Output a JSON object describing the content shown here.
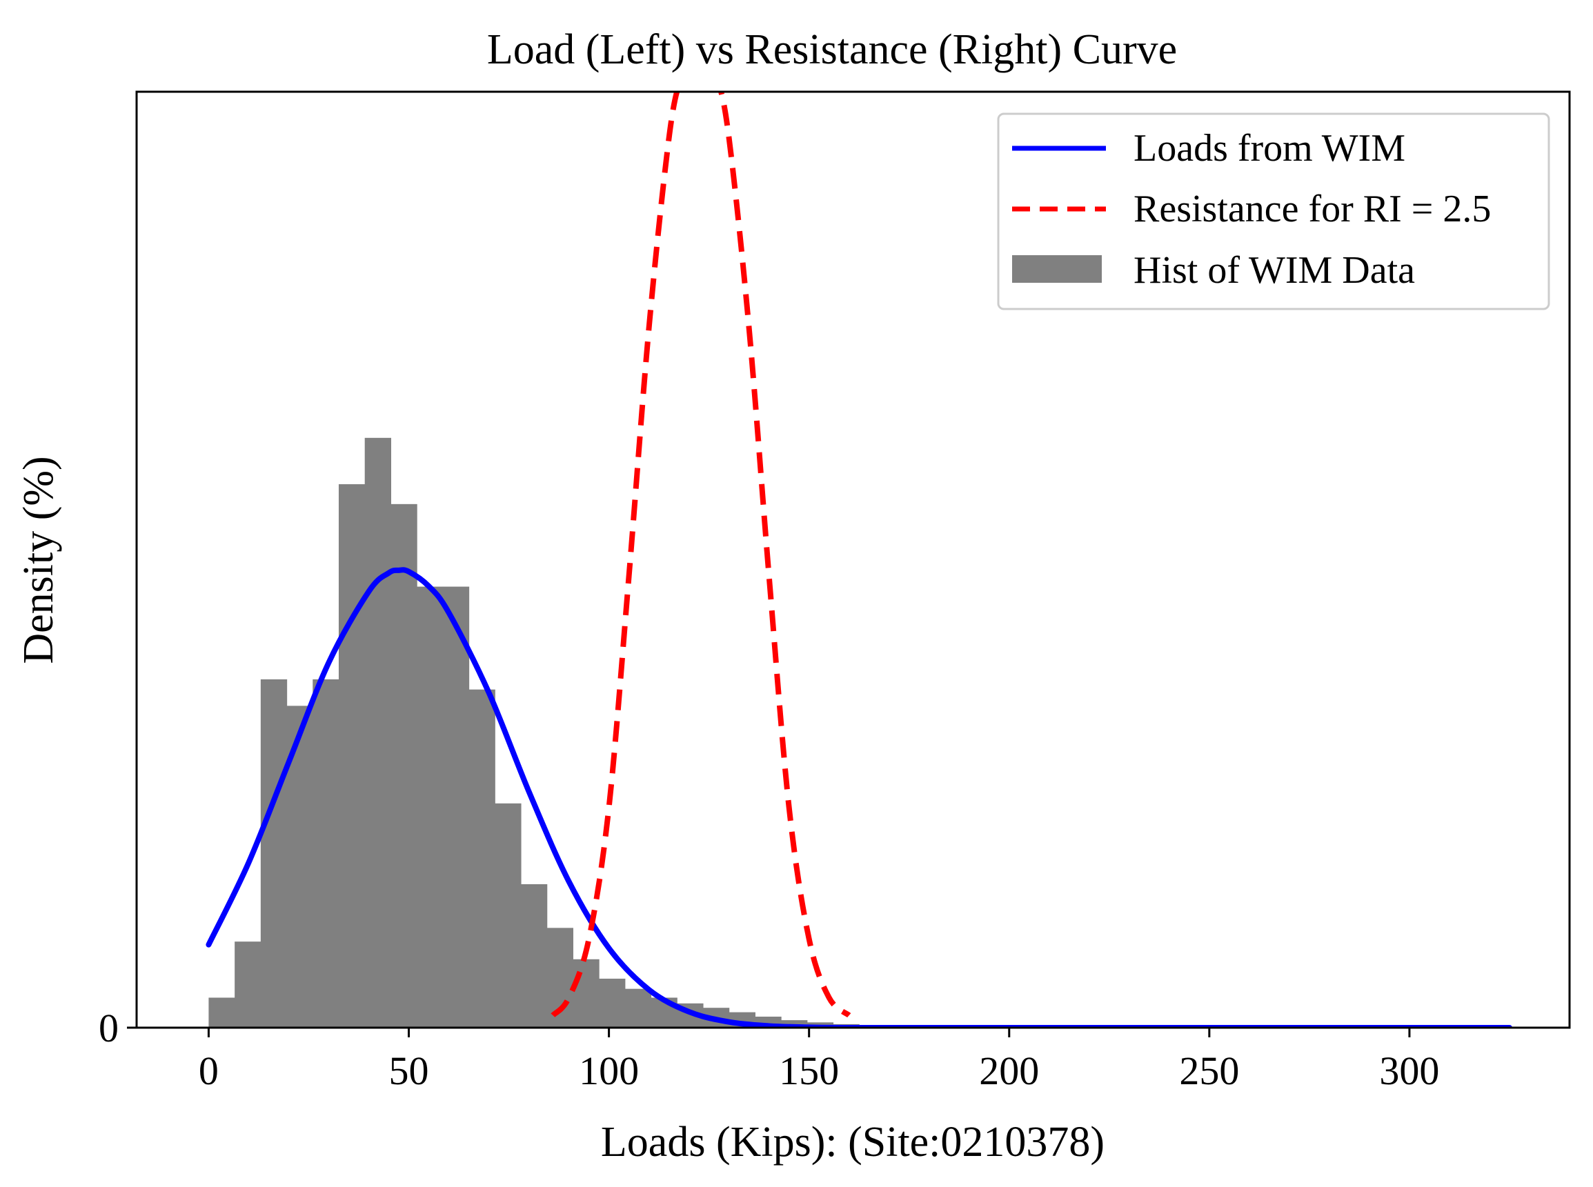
{
  "chart_data": {
    "type": "histogram+line",
    "title": "Load (Left) vs Resistance (Right) Curve",
    "xlabel": "Loads (Kips): (Site:0210378)",
    "ylabel": "Density (%)",
    "xlim": [
      -18,
      340
    ],
    "ylim": [
      0,
      0.0212
    ],
    "x_ticks": [
      0,
      50,
      100,
      150,
      200,
      250,
      300
    ],
    "x_tick_labels": [
      "0",
      "50",
      "100",
      "150",
      "200",
      "250",
      "300"
    ],
    "y_ticks": [
      0
    ],
    "y_tick_labels": [
      "0"
    ],
    "grid": false,
    "legend": {
      "position": "top-right",
      "entries": [
        {
          "label": "Loads from WIM",
          "style": "solid-line",
          "color": "#0000FF"
        },
        {
          "label": "Resistance for RI = 2.5",
          "style": "dashed-line",
          "color": "#FF0000"
        },
        {
          "label": "Hist of WIM Data",
          "style": "patch",
          "color": "#808080"
        }
      ]
    },
    "histogram": {
      "name": "Hist of WIM Data",
      "color": "#808080",
      "bin_width": 6.5,
      "bins": [
        {
          "x0": 0.0,
          "x1": 6.5,
          "density": 0.00068
        },
        {
          "x0": 6.5,
          "x1": 13.0,
          "density": 0.00195
        },
        {
          "x0": 13.0,
          "x1": 19.5,
          "density": 0.00789
        },
        {
          "x0": 19.5,
          "x1": 26.0,
          "density": 0.00729
        },
        {
          "x0": 26.0,
          "x1": 32.5,
          "density": 0.00789
        },
        {
          "x0": 32.5,
          "x1": 39.0,
          "density": 0.01231
        },
        {
          "x0": 39.0,
          "x1": 45.5,
          "density": 0.01336
        },
        {
          "x0": 45.5,
          "x1": 52.0,
          "density": 0.01186
        },
        {
          "x0": 52.0,
          "x1": 58.5,
          "density": 0.00999
        },
        {
          "x0": 58.5,
          "x1": 65.0,
          "density": 0.00999
        },
        {
          "x0": 65.0,
          "x1": 71.5,
          "density": 0.00766
        },
        {
          "x0": 71.5,
          "x1": 78.0,
          "density": 0.00508
        },
        {
          "x0": 78.0,
          "x1": 84.5,
          "density": 0.00325
        },
        {
          "x0": 84.5,
          "x1": 91.0,
          "density": 0.00226
        },
        {
          "x0": 91.0,
          "x1": 97.5,
          "density": 0.00155
        },
        {
          "x0": 97.5,
          "x1": 104.0,
          "density": 0.00111
        },
        {
          "x0": 104.0,
          "x1": 110.5,
          "density": 0.00088
        },
        {
          "x0": 110.5,
          "x1": 117.0,
          "density": 0.00068
        },
        {
          "x0": 117.0,
          "x1": 123.5,
          "density": 0.00055
        },
        {
          "x0": 123.5,
          "x1": 130.0,
          "density": 0.00045
        },
        {
          "x0": 130.0,
          "x1": 136.5,
          "density": 0.00035
        },
        {
          "x0": 136.5,
          "x1": 143.0,
          "density": 0.00025
        },
        {
          "x0": 143.0,
          "x1": 149.5,
          "density": 0.00017
        },
        {
          "x0": 149.5,
          "x1": 156.0,
          "density": 0.00012
        },
        {
          "x0": 156.0,
          "x1": 162.5,
          "density": 8e-05
        },
        {
          "x0": 162.5,
          "x1": 169.0,
          "density": 5e-05
        },
        {
          "x0": 169.0,
          "x1": 175.5,
          "density": 3e-05
        }
      ]
    },
    "series": [
      {
        "name": "Loads from WIM",
        "color": "#0000FF",
        "style": "solid",
        "x": [
          0,
          10,
          20,
          30,
          40,
          45,
          47.5,
          50,
          55,
          60,
          70,
          80,
          90,
          100,
          110,
          120,
          130,
          140,
          150,
          160,
          180,
          200,
          250,
          300,
          325
        ],
        "y": [
          0.00188,
          0.00374,
          0.00601,
          0.00827,
          0.00988,
          0.0103,
          0.01036,
          0.01033,
          0.01,
          0.0094,
          0.00759,
          0.00535,
          0.00331,
          0.0018,
          0.00086,
          0.00036,
          0.00013,
          4e-05,
          1e-05,
          0.0,
          0.0,
          0.0,
          0.0,
          0.0,
          0.0
        ]
      },
      {
        "name": "Resistance for RI = 2.5",
        "color": "#FF0000",
        "style": "dashed",
        "x": [
          86,
          90,
          95,
          100,
          105,
          110,
          115,
          118,
          121,
          122.5,
          124,
          127,
          130,
          135,
          140,
          145,
          150,
          155,
          160
        ],
        "y": [
          0.00028,
          0.00068,
          0.00201,
          0.00499,
          0.01023,
          0.01585,
          0.02015,
          0.02151,
          0.02201,
          0.0221,
          0.02201,
          0.02151,
          0.02015,
          0.01585,
          0.01023,
          0.00499,
          0.00201,
          0.00068,
          0.00028
        ]
      }
    ]
  }
}
